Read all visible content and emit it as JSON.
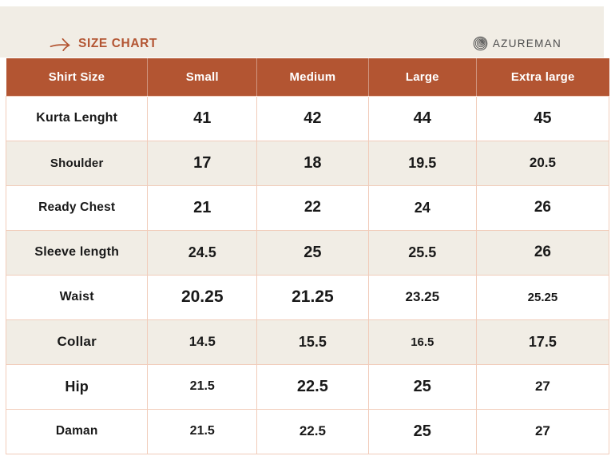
{
  "theme": {
    "accent": "#b35532",
    "banner_bg": "#f1ede5",
    "row_alt_bg": "#f1ede5",
    "border": "#f1ccba",
    "header_text": "#ffffff",
    "body_text": "#191919",
    "brand_text": "#4e4e4e",
    "page_bg": "#ffffff"
  },
  "banner": {
    "title": "SIZE CHART",
    "arrow_icon": "arrow-right",
    "brand_name": "AZUREMAN",
    "brand_icon": "yarn-spiral"
  },
  "table": {
    "columns": [
      "Shirt Size",
      "Small",
      "Medium",
      "Large",
      "Extra large"
    ],
    "rows": [
      {
        "label": "Kurta Lenght",
        "values": [
          "41",
          "42",
          "44",
          "45"
        ]
      },
      {
        "label": "Shoulder",
        "values": [
          "17",
          "18",
          "19.5",
          "20.5"
        ]
      },
      {
        "label": "Ready Chest",
        "values": [
          "21",
          "22",
          "24",
          "26"
        ]
      },
      {
        "label": "Sleeve length",
        "values": [
          "24.5",
          "25",
          "25.5",
          "26"
        ]
      },
      {
        "label": "Waist",
        "values": [
          "20.25",
          "21.25",
          "23.25",
          "25.25"
        ]
      },
      {
        "label": "Collar",
        "values": [
          "14.5",
          "15.5",
          "16.5",
          "17.5"
        ]
      },
      {
        "label": "Hip",
        "values": [
          "21.5",
          "22.5",
          "25",
          "27"
        ]
      },
      {
        "label": "Daman",
        "values": [
          "21.5",
          "22.5",
          "25",
          "27"
        ]
      }
    ]
  }
}
